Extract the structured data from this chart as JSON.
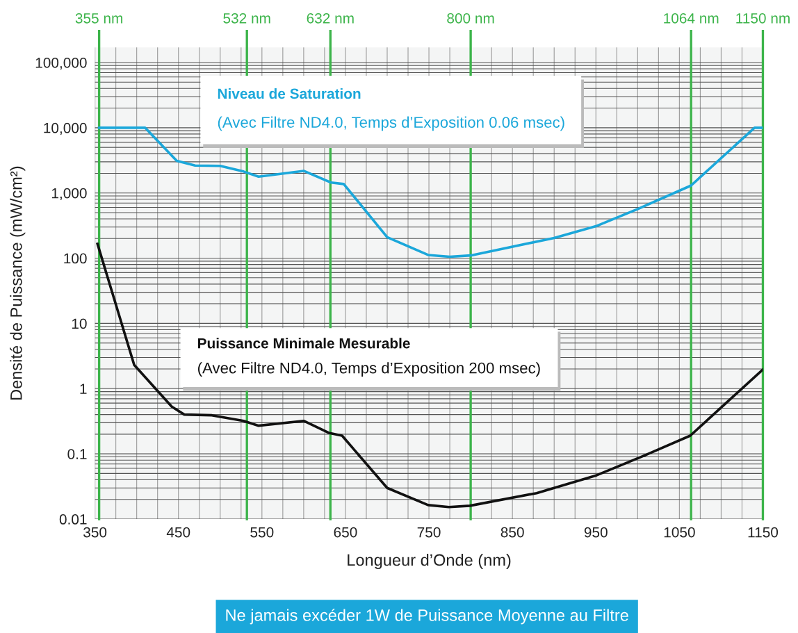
{
  "chart_data": {
    "type": "line",
    "xlabel": "Longueur d’Onde (nm)",
    "ylabel": "Densité de Puissance (mW/cm²)",
    "series": [
      {
        "color": "#1ba7da",
        "x": [
          355,
          410,
          448,
          470,
          500,
          528,
          546,
          600,
          633,
          648,
          700,
          749,
          775,
          800,
          900,
          950,
          1000,
          1064,
          1140,
          1150
        ],
        "values": [
          10000,
          10000,
          3100,
          2630,
          2600,
          2130,
          1780,
          2180,
          1440,
          1370,
          210,
          112,
          105,
          110,
          204,
          309,
          566,
          1300,
          10000,
          10000
        ]
      },
      {
        "color": "#111111",
        "x": [
          353,
          397,
          442,
          457,
          490,
          528,
          546,
          600,
          630,
          646,
          700,
          749,
          774,
          799,
          879,
          951,
          1008,
          1063,
          1150
        ],
        "values": [
          166,
          2.3,
          0.53,
          0.4,
          0.39,
          0.32,
          0.27,
          0.32,
          0.21,
          0.19,
          0.03,
          0.0164,
          0.0153,
          0.016,
          0.025,
          0.047,
          0.094,
          0.19,
          1.96
        ]
      }
    ],
    "xlim": [
      350,
      1150
    ],
    "xticks": [
      350,
      450,
      550,
      650,
      750,
      850,
      950,
      1050,
      1150
    ],
    "log": "y",
    "ylim": [
      0.01,
      170000
    ],
    "yticks": [
      0.01,
      0.1,
      1,
      10,
      100,
      {
        "value": 1000,
        "label": "1,000"
      },
      {
        "value": 10000,
        "label": "10,000"
      },
      {
        "value": 100000,
        "label": "100,000"
      }
    ],
    "grid": true,
    "ref_lines": [
      {
        "axis": "x",
        "value": 355,
        "label": "355 nm",
        "color": "#3cb44a"
      },
      {
        "axis": "x",
        "value": 532,
        "label": "532 nm",
        "color": "#3cb44a"
      },
      {
        "axis": "x",
        "value": 632,
        "label": "632 nm",
        "color": "#3cb44a"
      },
      {
        "axis": "x",
        "value": 800,
        "label": "800 nm",
        "color": "#3cb44a"
      },
      {
        "axis": "x",
        "value": 1064,
        "label": "1064 nm",
        "color": "#3cb44a"
      },
      {
        "axis": "x",
        "value": 1150,
        "label": "1150 nm",
        "color": "#3cb44a"
      }
    ],
    "annotations": [
      "Niveau de Saturation",
      "(Avec Filtre ND4.0, Temps d’Exposition 0.06 msec)",
      "Puissance Minimale Mesurable",
      "(Avec Filtre ND4.0, Temps d’Exposition 200 msec)",
      "Ne jamais excéder 1W de Puissance Moyenne au Filtre"
    ]
  }
}
